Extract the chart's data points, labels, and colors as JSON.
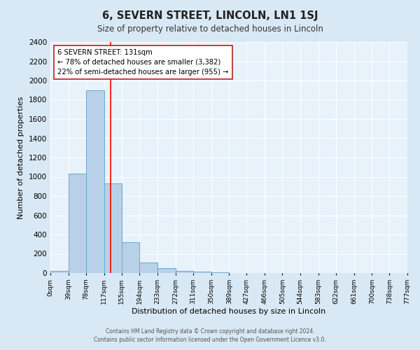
{
  "title": "6, SEVERN STREET, LINCOLN, LN1 1SJ",
  "subtitle": "Size of property relative to detached houses in Lincoln",
  "xlabel": "Distribution of detached houses by size in Lincoln",
  "ylabel": "Number of detached properties",
  "bar_color": "#b8d0e8",
  "bar_edge_color": "#6aaad4",
  "background_color": "#d8e8f4",
  "plot_bg_color": "#e8f2fa",
  "grid_color": "#ffffff",
  "red_line_x": 131,
  "annotation_text_line1": "6 SEVERN STREET: 131sqm",
  "annotation_text_line2": "← 78% of detached houses are smaller (3,382)",
  "annotation_text_line3": "22% of semi-detached houses are larger (955) →",
  "footer_line1": "Contains HM Land Registry data © Crown copyright and database right 2024.",
  "footer_line2": "Contains public sector information licensed under the Open Government Licence v3.0.",
  "bins": [
    0,
    39,
    78,
    117,
    155,
    194,
    233,
    272,
    311,
    350,
    389,
    427,
    466,
    505,
    544,
    583,
    622,
    661,
    700,
    738,
    777
  ],
  "counts": [
    20,
    1030,
    1900,
    930,
    320,
    110,
    50,
    25,
    15,
    10,
    0,
    0,
    0,
    0,
    0,
    0,
    0,
    0,
    0,
    0
  ],
  "ylim": [
    0,
    2400
  ],
  "yticks": [
    0,
    200,
    400,
    600,
    800,
    1000,
    1200,
    1400,
    1600,
    1800,
    2000,
    2200,
    2400
  ]
}
